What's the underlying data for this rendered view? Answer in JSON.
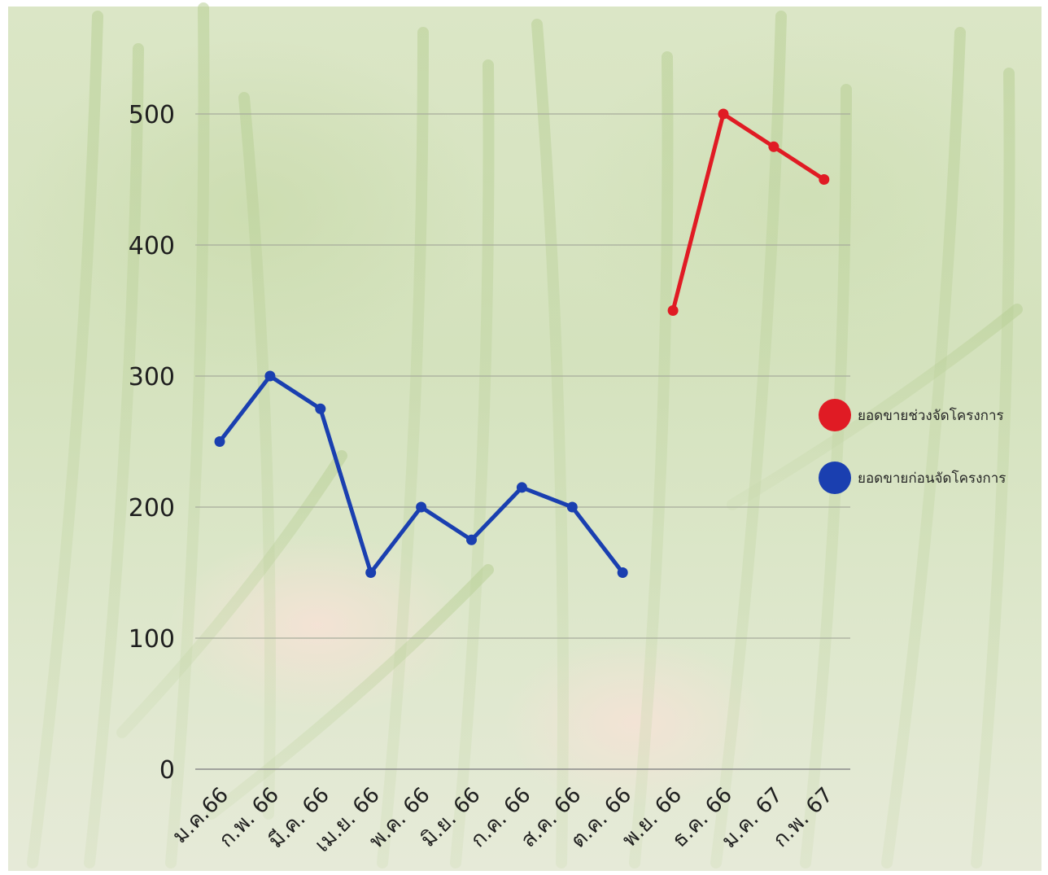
{
  "chart_data": {
    "type": "line",
    "categories": [
      "ม.ค.66",
      "ก.พ. 66",
      "มี.ค. 66",
      "เม.ย. 66",
      "พ.ค. 66",
      "มิ.ย. 66",
      "ก.ค. 66",
      "ส.ค. 66",
      "ต.ค. 66",
      "พ.ย. 66",
      "ธ.ค. 66",
      "ม.ค. 67",
      "ก.พ. 67"
    ],
    "series": [
      {
        "name": "ยอดขายก่อนจัดโครงการ",
        "color": "#1a3fb0",
        "values": [
          250,
          300,
          275,
          150,
          200,
          175,
          215,
          200,
          150,
          null,
          null,
          null,
          null
        ]
      },
      {
        "name": "ยอดขายช่วงจัดโครงการ",
        "color": "#e01b24",
        "values": [
          null,
          null,
          null,
          null,
          null,
          null,
          null,
          null,
          null,
          350,
          500,
          475,
          450
        ]
      }
    ],
    "y_ticks": [
      "0",
      "100",
      "200",
      "300",
      "400",
      "500"
    ],
    "ylim": [
      0,
      500
    ],
    "grid": true,
    "legend_position": "right"
  }
}
